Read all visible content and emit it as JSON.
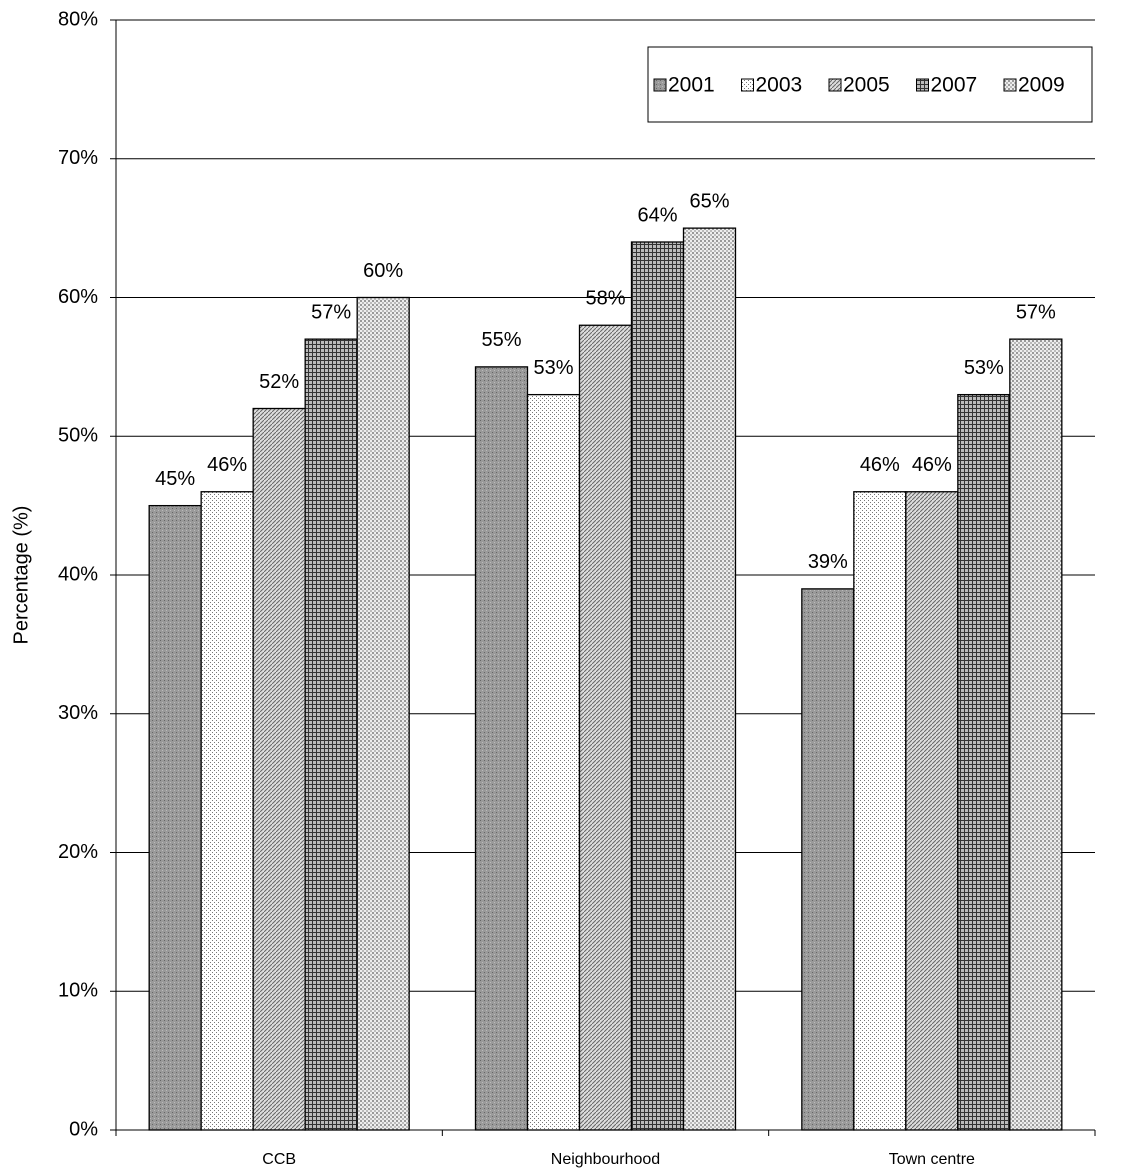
{
  "chart_data": {
    "type": "bar",
    "y_label": "Percentage (%)",
    "categories": [
      "CCB",
      "Neighbourhood",
      "Town centre"
    ],
    "series": [
      {
        "name": "2001",
        "values": [
          45,
          55,
          39
        ],
        "value_labels": [
          "45%",
          "55%",
          "39%"
        ]
      },
      {
        "name": "2003",
        "values": [
          46,
          53,
          46
        ],
        "value_labels": [
          "46%",
          "53%",
          "46%"
        ]
      },
      {
        "name": "2005",
        "values": [
          52,
          58,
          46
        ],
        "value_labels": [
          "52%",
          "58%",
          "46%"
        ]
      },
      {
        "name": "2007",
        "values": [
          57,
          64,
          53
        ],
        "value_labels": [
          "57%",
          "64%",
          "53%"
        ]
      },
      {
        "name": "2009",
        "values": [
          60,
          65,
          57
        ],
        "value_labels": [
          "60%",
          "65%",
          "57%"
        ]
      }
    ],
    "ylim": [
      0,
      80
    ],
    "yticks": [
      {
        "value": 0,
        "label": "0%"
      },
      {
        "value": 10,
        "label": "10%"
      },
      {
        "value": 20,
        "label": "20%"
      },
      {
        "value": 30,
        "label": "30%"
      },
      {
        "value": 40,
        "label": "40%"
      },
      {
        "value": 50,
        "label": "50%"
      },
      {
        "value": 60,
        "label": "60%"
      },
      {
        "value": 70,
        "label": "70%"
      },
      {
        "value": 80,
        "label": "80%"
      }
    ],
    "grid": true,
    "legend": "top-right"
  }
}
